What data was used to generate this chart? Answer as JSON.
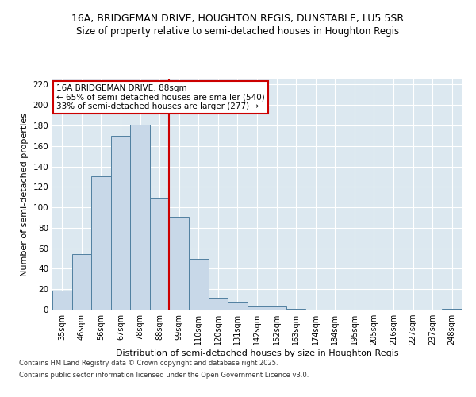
{
  "title_line1": "16A, BRIDGEMAN DRIVE, HOUGHTON REGIS, DUNSTABLE, LU5 5SR",
  "title_line2": "Size of property relative to semi-detached houses in Houghton Regis",
  "xlabel": "Distribution of semi-detached houses by size in Houghton Regis",
  "ylabel": "Number of semi-detached properties",
  "categories": [
    "35sqm",
    "46sqm",
    "56sqm",
    "67sqm",
    "78sqm",
    "88sqm",
    "99sqm",
    "110sqm",
    "120sqm",
    "131sqm",
    "142sqm",
    "152sqm",
    "163sqm",
    "174sqm",
    "184sqm",
    "195sqm",
    "205sqm",
    "216sqm",
    "227sqm",
    "237sqm",
    "248sqm"
  ],
  "values": [
    19,
    54,
    130,
    170,
    181,
    109,
    91,
    50,
    12,
    8,
    3,
    3,
    1,
    0,
    0,
    0,
    0,
    0,
    0,
    0,
    1
  ],
  "bar_color": "#c8d8e8",
  "bar_edge_color": "#5080a0",
  "vline_color": "#cc0000",
  "vline_index": 5,
  "annotation_title": "16A BRIDGEMAN DRIVE: 88sqm",
  "annotation_line1": "← 65% of semi-detached houses are smaller (540)",
  "annotation_line2": "33% of semi-detached houses are larger (277) →",
  "annotation_box_facecolor": "#ffffff",
  "annotation_box_edgecolor": "#cc0000",
  "ylim": [
    0,
    225
  ],
  "yticks": [
    0,
    20,
    40,
    60,
    80,
    100,
    120,
    140,
    160,
    180,
    200,
    220
  ],
  "background_color": "#dce8f0",
  "grid_color": "#ffffff",
  "footer_line1": "Contains HM Land Registry data © Crown copyright and database right 2025.",
  "footer_line2": "Contains public sector information licensed under the Open Government Licence v3.0."
}
